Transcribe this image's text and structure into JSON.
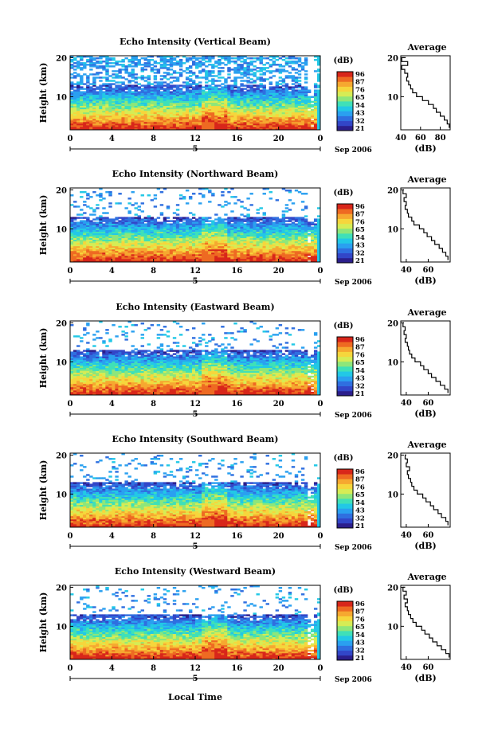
{
  "figure": {
    "date_label": "Sep 2006",
    "x_axis_title": "Local Time",
    "colorbar_unit": "(dB)",
    "colorbar_ticks": [
      "96",
      "87",
      "76",
      "65",
      "54",
      "43",
      "32",
      "21"
    ],
    "colormap": [
      "#2b1e8c",
      "#3246c8",
      "#2f6fe0",
      "#2aa0f0",
      "#22c8e6",
      "#3fe0b8",
      "#8ee67a",
      "#d6ec55",
      "#f6d63c",
      "#f6a830",
      "#ee6a22",
      "#d8261a"
    ],
    "average_title": "Average",
    "average_xlabel": "(dB)",
    "height_axis_title": "Height (km)"
  },
  "chart_data": [
    {
      "type": "heatmap",
      "title": "Echo Intensity (Vertical Beam)",
      "ylabel": "Height (km)",
      "xlim": [
        0,
        24
      ],
      "ylim": [
        1.5,
        20.5
      ],
      "x_ticks": [
        "0",
        "4",
        "8",
        "12",
        "16",
        "20",
        "0"
      ],
      "x_date_label": "5",
      "y_ticks": [
        "20",
        "10"
      ],
      "colorbar": {
        "label": "(dB)",
        "ticks": [
          "96",
          "87",
          "76",
          "65",
          "54",
          "43",
          "32",
          "21"
        ]
      },
      "average": {
        "title": "Average",
        "xlabel": "(dB)",
        "x_ticks": [
          "40",
          "60",
          "80"
        ],
        "xlim": [
          40,
          90
        ],
        "heights": [
          2,
          3,
          4,
          5,
          6,
          7,
          8,
          9,
          10,
          11,
          12,
          13,
          14,
          15,
          16,
          17,
          18,
          19,
          20
        ],
        "values": [
          89,
          87,
          84,
          80,
          76,
          73,
          68,
          62,
          56,
          52,
          50,
          48,
          46,
          47,
          44,
          41,
          47,
          41,
          45
        ]
      }
    },
    {
      "type": "heatmap",
      "title": "Echo Intensity (Northward Beam)",
      "ylabel": "Height (km)",
      "xlim": [
        0,
        24
      ],
      "ylim": [
        1.5,
        20.5
      ],
      "x_ticks": [
        "0",
        "4",
        "8",
        "12",
        "16",
        "20",
        "0"
      ],
      "x_date_label": "5",
      "y_ticks": [
        "20",
        "10"
      ],
      "colorbar": {
        "label": "(dB)",
        "ticks": [
          "96",
          "87",
          "76",
          "65",
          "54",
          "43",
          "32",
          "21"
        ]
      },
      "average": {
        "title": "Average",
        "xlabel": "(dB)",
        "x_ticks": [
          "40",
          "60"
        ],
        "xlim": [
          35,
          80
        ],
        "heights": [
          2,
          3,
          4,
          5,
          6,
          7,
          8,
          9,
          10,
          11,
          12,
          13,
          14,
          15,
          16,
          17,
          18,
          19,
          20
        ],
        "values": [
          78,
          76,
          73,
          70,
          66,
          63,
          59,
          56,
          52,
          47,
          45,
          42,
          41,
          39,
          40,
          38,
          40,
          37,
          38
        ]
      }
    },
    {
      "type": "heatmap",
      "title": "Echo Intensity (Eastward Beam)",
      "ylabel": "Height (km)",
      "xlim": [
        0,
        24
      ],
      "ylim": [
        1.5,
        20.5
      ],
      "x_ticks": [
        "0",
        "4",
        "8",
        "12",
        "16",
        "20",
        "0"
      ],
      "x_date_label": "5",
      "y_ticks": [
        "20",
        "10"
      ],
      "colorbar": {
        "label": "(dB)",
        "ticks": [
          "96",
          "87",
          "76",
          "65",
          "54",
          "43",
          "32",
          "21"
        ]
      },
      "average": {
        "title": "Average",
        "xlabel": "(dB)",
        "x_ticks": [
          "40",
          "60"
        ],
        "xlim": [
          35,
          80
        ],
        "heights": [
          2,
          3,
          4,
          5,
          6,
          7,
          8,
          9,
          10,
          11,
          12,
          13,
          14,
          15,
          16,
          17,
          18,
          19,
          20
        ],
        "values": [
          78,
          75,
          71,
          67,
          63,
          60,
          56,
          53,
          48,
          45,
          43,
          42,
          41,
          39,
          40,
          38,
          39,
          37,
          38
        ]
      }
    },
    {
      "type": "heatmap",
      "title": "Echo Intensity (Southward Beam)",
      "ylabel": "Height (km)",
      "xlim": [
        0,
        24
      ],
      "ylim": [
        1.5,
        20.5
      ],
      "x_ticks": [
        "0",
        "4",
        "8",
        "12",
        "16",
        "20",
        "0"
      ],
      "x_date_label": "5",
      "y_ticks": [
        "20",
        "10"
      ],
      "colorbar": {
        "label": "(dB)",
        "ticks": [
          "96",
          "87",
          "76",
          "65",
          "54",
          "43",
          "32",
          "21"
        ]
      },
      "average": {
        "title": "Average",
        "xlabel": "(dB)",
        "x_ticks": [
          "40",
          "60"
        ],
        "xlim": [
          35,
          80
        ],
        "heights": [
          2,
          3,
          4,
          5,
          6,
          7,
          8,
          9,
          10,
          11,
          12,
          13,
          14,
          15,
          16,
          17,
          18,
          19,
          20
        ],
        "values": [
          78,
          76,
          72,
          69,
          65,
          62,
          58,
          55,
          50,
          47,
          45,
          44,
          42,
          41,
          43,
          40,
          41,
          39,
          40
        ]
      }
    },
    {
      "type": "heatmap",
      "title": "Echo Intensity (Westward Beam)",
      "ylabel": "Height (km)",
      "xlim": [
        0,
        24
      ],
      "ylim": [
        1.5,
        20.5
      ],
      "x_ticks": [
        "0",
        "4",
        "8",
        "12",
        "16",
        "20",
        "0"
      ],
      "x_date_label": "5",
      "y_ticks": [
        "20",
        "10"
      ],
      "colorbar": {
        "label": "(dB)",
        "ticks": [
          "96",
          "87",
          "76",
          "65",
          "54",
          "43",
          "32",
          "21"
        ]
      },
      "average": {
        "title": "Average",
        "xlabel": "(dB)",
        "x_ticks": [
          "40",
          "60"
        ],
        "xlim": [
          35,
          80
        ],
        "heights": [
          2,
          3,
          4,
          5,
          6,
          7,
          8,
          9,
          10,
          11,
          12,
          13,
          14,
          15,
          16,
          17,
          18,
          19,
          20
        ],
        "values": [
          79,
          76,
          72,
          68,
          64,
          61,
          57,
          54,
          49,
          46,
          44,
          42,
          41,
          39,
          41,
          38,
          40,
          37,
          39
        ]
      }
    }
  ]
}
